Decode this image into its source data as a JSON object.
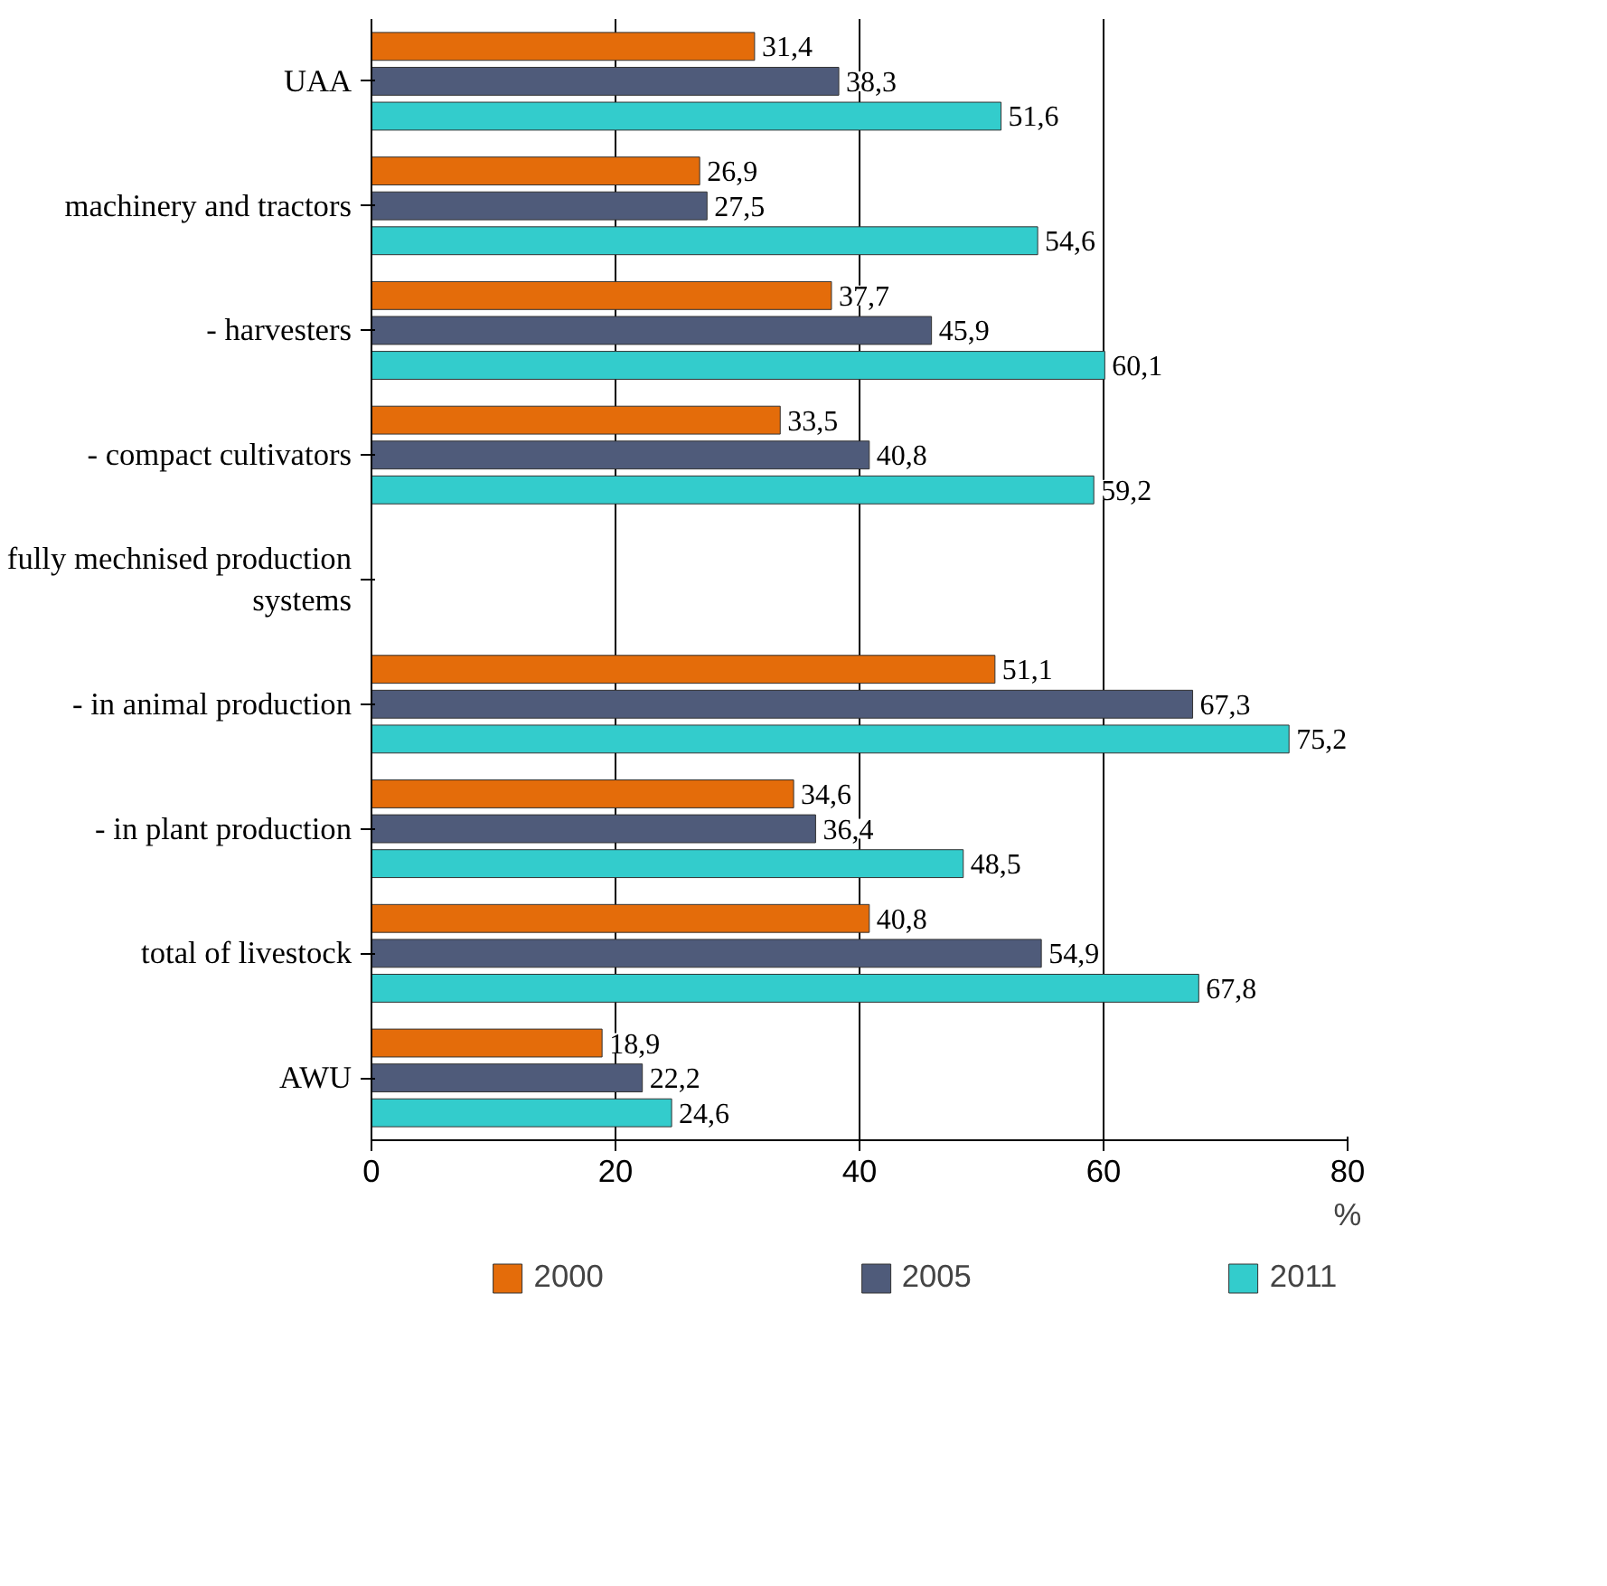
{
  "chart_data": {
    "type": "bar",
    "orientation": "horizontal",
    "xlabel": "%",
    "categories": [
      "UAA",
      "machinery and tractors",
      "- harvesters",
      "- compact cultivators",
      "fully mechnised production systems",
      "- in animal production",
      "- in plant production",
      "total of livestock",
      "AWU"
    ],
    "series": [
      {
        "name": "2000",
        "color": "#e46c0a",
        "values": [
          31.4,
          26.9,
          37.7,
          33.5,
          null,
          51.1,
          34.6,
          40.8,
          18.9
        ],
        "value_labels": [
          "31,4",
          "26,9",
          "37,7",
          "33,5",
          null,
          "51,1",
          "34,6",
          "40,8",
          "18,9"
        ]
      },
      {
        "name": "2005",
        "color": "#4f5b7a",
        "values": [
          38.3,
          27.5,
          45.9,
          40.8,
          null,
          67.3,
          36.4,
          54.9,
          22.2
        ],
        "value_labels": [
          "38,3",
          "27,5",
          "45,9",
          "40,8",
          null,
          "67,3",
          "36,4",
          "54,9",
          "22,2"
        ]
      },
      {
        "name": "2011",
        "color": "#33cccc",
        "values": [
          51.6,
          54.6,
          60.1,
          59.2,
          null,
          75.2,
          48.5,
          67.8,
          24.6
        ],
        "value_labels": [
          "51,6",
          "54,6",
          "60,1",
          "59,2",
          null,
          "75,2",
          "48,5",
          "67,8",
          "24,6"
        ]
      }
    ],
    "xlim": [
      0,
      80
    ],
    "xticks": [
      0,
      20,
      40,
      60,
      80
    ],
    "grid": "x",
    "legend": "bottom"
  }
}
